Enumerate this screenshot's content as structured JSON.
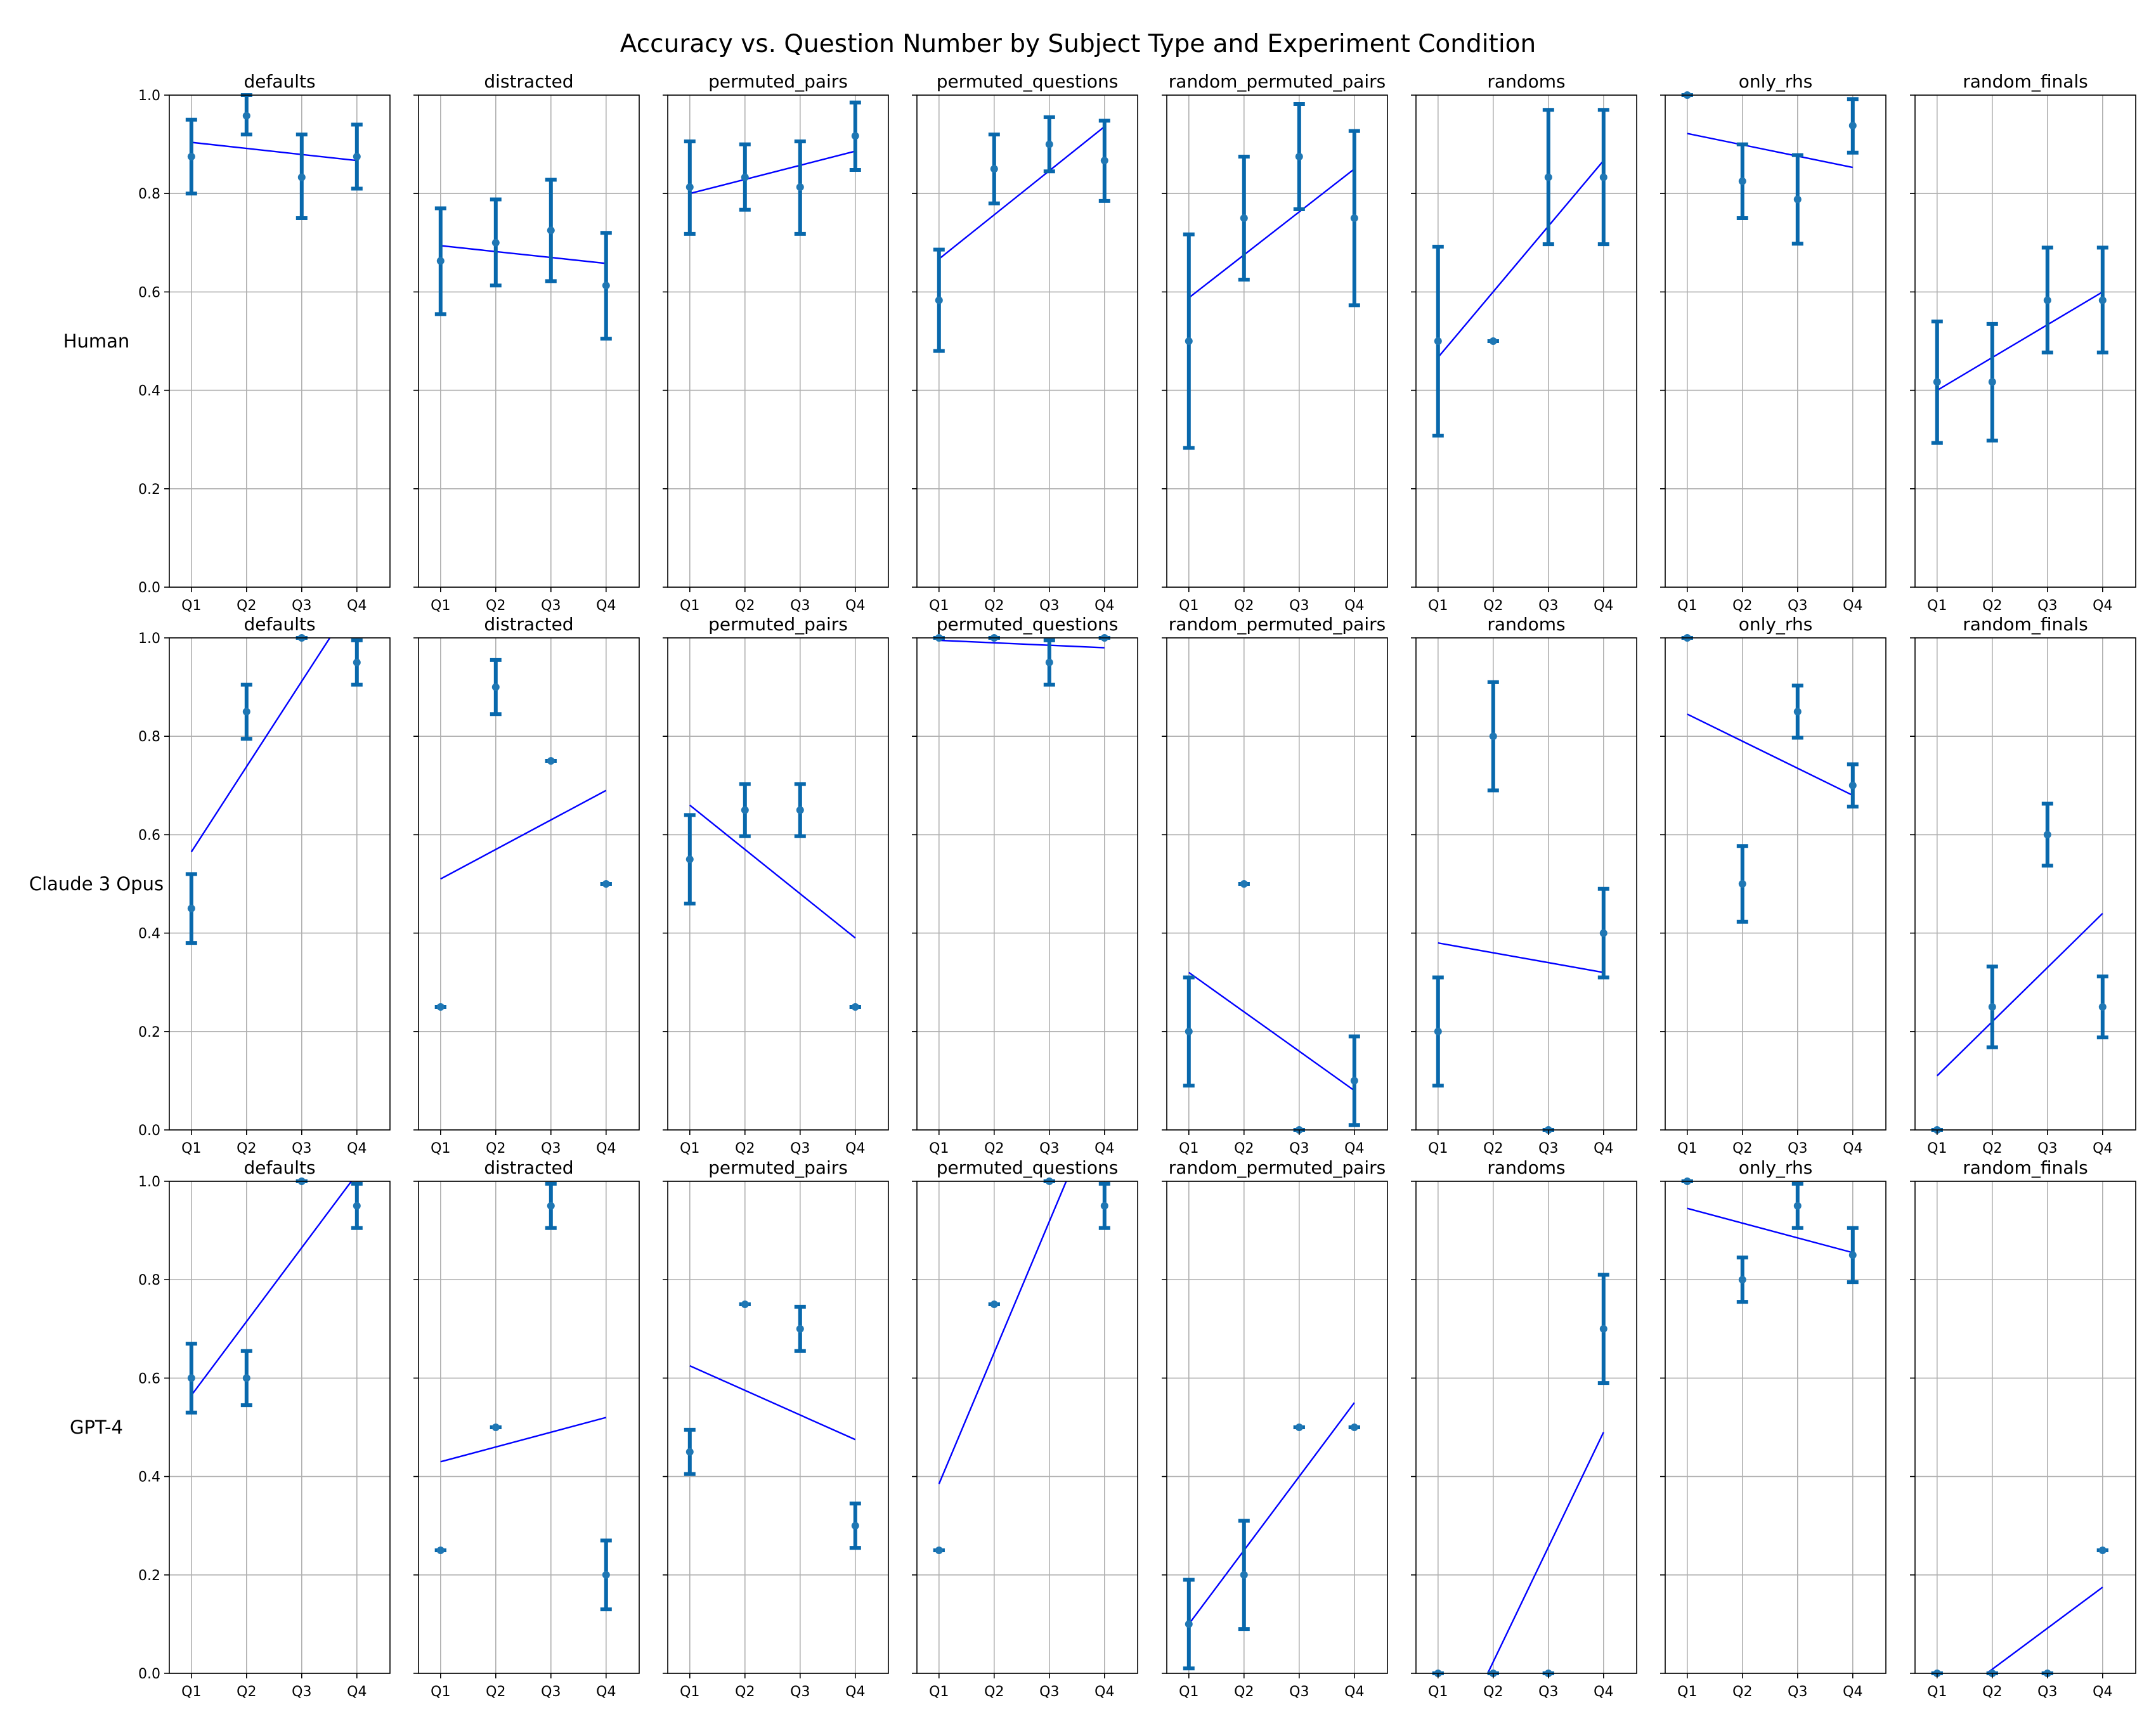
{
  "chart_data": {
    "type": "scatter",
    "title": "Accuracy vs. Question Number by Subject Type and Experiment Condition",
    "columns": [
      "defaults",
      "distracted",
      "permuted_pairs",
      "permuted_questions",
      "random_permuted_pairs",
      "randoms",
      "only_rhs",
      "random_finals"
    ],
    "rows": [
      "Human",
      "Claude 3 Opus",
      "GPT-4"
    ],
    "x_categories": [
      "Q1",
      "Q2",
      "Q3",
      "Q4"
    ],
    "ylim": [
      0,
      1
    ],
    "yticks": [
      "0.0",
      "0.2",
      "0.4",
      "0.6",
      "0.8",
      "1.0"
    ],
    "grid": true,
    "colors": {
      "points": "#1f77b4",
      "errorbars": "#0868ac",
      "fit_line": "#0000ff"
    },
    "panels": [
      [
        {
          "means": [
            0.875,
            0.958,
            0.833,
            0.875
          ],
          "lo": [
            0.8,
            0.92,
            0.75,
            0.81
          ],
          "hi": [
            0.95,
            1.0,
            0.92,
            0.94
          ],
          "fit": [
            0.904,
            0.867
          ]
        },
        {
          "means": [
            0.663,
            0.7,
            0.725,
            0.613
          ],
          "lo": [
            0.555,
            0.613,
            0.622,
            0.505
          ],
          "hi": [
            0.77,
            0.788,
            0.828,
            0.72
          ],
          "fit": [
            0.694,
            0.658
          ]
        },
        {
          "means": [
            0.813,
            0.833,
            0.813,
            0.917
          ],
          "lo": [
            0.718,
            0.767,
            0.718,
            0.848
          ],
          "hi": [
            0.906,
            0.9,
            0.906,
            0.985
          ],
          "fit": [
            0.8,
            0.886
          ]
        },
        {
          "means": [
            0.583,
            0.85,
            0.9,
            0.867
          ],
          "lo": [
            0.48,
            0.78,
            0.845,
            0.785
          ],
          "hi": [
            0.686,
            0.92,
            0.955,
            0.948
          ],
          "fit": [
            0.667,
            0.936
          ]
        },
        {
          "means": [
            0.5,
            0.75,
            0.875,
            0.75
          ],
          "lo": [
            0.283,
            0.625,
            0.768,
            0.573
          ],
          "hi": [
            0.717,
            0.875,
            0.982,
            0.927
          ],
          "fit": [
            0.588,
            0.85
          ]
        },
        {
          "means": [
            0.5,
            0.5,
            0.833,
            0.833
          ],
          "lo": [
            0.308,
            0.5,
            0.697,
            0.697
          ],
          "hi": [
            0.692,
            0.5,
            0.97,
            0.97
          ],
          "fit": [
            0.467,
            0.867
          ]
        },
        {
          "means": [
            1.0,
            0.825,
            0.788,
            0.938
          ],
          "lo": [
            1.0,
            0.75,
            0.698,
            0.883
          ],
          "hi": [
            1.0,
            0.9,
            0.878,
            0.992
          ],
          "fit": [
            0.922,
            0.853
          ]
        },
        {
          "means": [
            0.417,
            0.417,
            0.583,
            0.583
          ],
          "lo": [
            0.293,
            0.298,
            0.477,
            0.477
          ],
          "hi": [
            0.54,
            0.535,
            0.69,
            0.69
          ],
          "fit": [
            0.4,
            0.6
          ]
        }
      ],
      [
        {
          "means": [
            0.45,
            0.85,
            1.0,
            0.95
          ],
          "lo": [
            0.38,
            0.795,
            1.0,
            0.905
          ],
          "hi": [
            0.52,
            0.905,
            1.0,
            0.995
          ],
          "fit": [
            0.565,
            1.085
          ]
        },
        {
          "means": [
            0.25,
            0.9,
            0.75,
            0.5
          ],
          "lo": [
            0.25,
            0.845,
            0.75,
            0.5
          ],
          "hi": [
            0.25,
            0.955,
            0.75,
            0.5
          ],
          "fit": [
            0.51,
            0.69
          ]
        },
        {
          "means": [
            0.55,
            0.65,
            0.65,
            0.25
          ],
          "lo": [
            0.46,
            0.597,
            0.597,
            0.25
          ],
          "hi": [
            0.64,
            0.703,
            0.703,
            0.25
          ],
          "fit": [
            0.66,
            0.39
          ]
        },
        {
          "means": [
            1.0,
            1.0,
            0.95,
            1.0
          ],
          "lo": [
            1.0,
            1.0,
            0.905,
            1.0
          ],
          "hi": [
            1.0,
            1.0,
            0.995,
            1.0
          ],
          "fit": [
            0.995,
            0.98
          ]
        },
        {
          "means": [
            0.2,
            0.5,
            0.0,
            0.1
          ],
          "lo": [
            0.09,
            0.5,
            0.0,
            0.01
          ],
          "hi": [
            0.31,
            0.5,
            0.0,
            0.19
          ],
          "fit": [
            0.32,
            0.08
          ]
        },
        {
          "means": [
            0.2,
            0.8,
            0.0,
            0.4
          ],
          "lo": [
            0.09,
            0.69,
            0.0,
            0.31
          ],
          "hi": [
            0.31,
            0.91,
            0.0,
            0.49
          ],
          "fit": [
            0.38,
            0.32
          ]
        },
        {
          "means": [
            1.0,
            0.5,
            0.85,
            0.7
          ],
          "lo": [
            1.0,
            0.423,
            0.797,
            0.657
          ],
          "hi": [
            1.0,
            0.577,
            0.903,
            0.743
          ],
          "fit": [
            0.845,
            0.68
          ]
        },
        {
          "means": [
            0.0,
            0.25,
            0.6,
            0.25
          ],
          "lo": [
            0.0,
            0.168,
            0.537,
            0.188
          ],
          "hi": [
            0.0,
            0.332,
            0.663,
            0.312
          ],
          "fit": [
            0.11,
            0.44
          ]
        }
      ],
      [
        {
          "means": [
            0.6,
            0.6,
            1.0,
            0.95
          ],
          "lo": [
            0.53,
            0.545,
            1.0,
            0.905
          ],
          "hi": [
            0.67,
            0.655,
            1.0,
            0.995
          ],
          "fit": [
            0.565,
            1.015
          ]
        },
        {
          "means": [
            0.25,
            0.5,
            0.95,
            0.2
          ],
          "lo": [
            0.25,
            0.5,
            0.905,
            0.13
          ],
          "hi": [
            0.25,
            0.5,
            0.995,
            0.27
          ],
          "fit": [
            0.43,
            0.52
          ]
        },
        {
          "means": [
            0.45,
            0.75,
            0.7,
            0.3
          ],
          "lo": [
            0.405,
            0.75,
            0.655,
            0.255
          ],
          "hi": [
            0.495,
            0.75,
            0.745,
            0.345
          ],
          "fit": [
            0.625,
            0.475
          ]
        },
        {
          "means": [
            0.25,
            0.75,
            1.0,
            0.95
          ],
          "lo": [
            0.25,
            0.75,
            1.0,
            0.905
          ],
          "hi": [
            0.25,
            0.75,
            1.0,
            0.995
          ],
          "fit": [
            0.385,
            1.185
          ]
        },
        {
          "means": [
            0.1,
            0.2,
            0.5,
            0.5
          ],
          "lo": [
            0.01,
            0.09,
            0.5,
            0.5
          ],
          "hi": [
            0.19,
            0.31,
            0.5,
            0.5
          ],
          "fit": [
            0.1,
            0.55
          ]
        },
        {
          "means": [
            0.0,
            0.0,
            0.0,
            0.7
          ],
          "lo": [
            0.0,
            0.0,
            0.0,
            0.59
          ],
          "hi": [
            0.0,
            0.0,
            0.0,
            0.81
          ],
          "fit": [
            -0.21,
            0.49
          ]
        },
        {
          "means": [
            1.0,
            0.8,
            0.95,
            0.85
          ],
          "lo": [
            1.0,
            0.755,
            0.905,
            0.795
          ],
          "hi": [
            1.0,
            0.845,
            0.995,
            0.905
          ],
          "fit": [
            0.945,
            0.855
          ]
        },
        {
          "means": [
            0.0,
            0.0,
            0.0,
            0.25
          ],
          "lo": [
            0.0,
            0.0,
            0.0,
            0.25
          ],
          "hi": [
            0.0,
            0.0,
            0.0,
            0.25
          ],
          "fit": [
            -0.075,
            0.175
          ]
        }
      ]
    ]
  }
}
